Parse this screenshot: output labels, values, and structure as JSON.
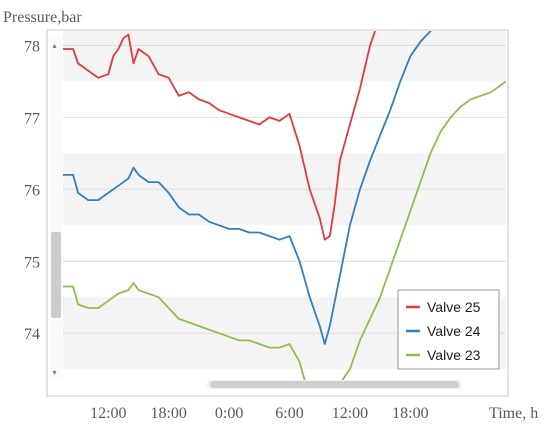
{
  "chart_data": {
    "type": "line",
    "title": "",
    "ylabel": "Pressure,bar",
    "xlabel": "Time, h",
    "x_ticks": [
      "12:00",
      "18:00",
      "0:00",
      "6:00",
      "12:00",
      "18:00"
    ],
    "x_tick_hours": [
      12,
      18,
      24,
      30,
      36,
      42
    ],
    "xlim": [
      7.5,
      51.5
    ],
    "y_ticks": [
      74,
      75,
      76,
      77,
      78
    ],
    "ylim": [
      73.35,
      78.2
    ],
    "grid": true,
    "legend_position": "bottom-right",
    "series": [
      {
        "name": "Valve 25",
        "color": "#e03a3e",
        "x": [
          7.5,
          8.5,
          9,
          10,
          11,
          12,
          12.5,
          13,
          13.5,
          14,
          14.5,
          15,
          15.5,
          16,
          17,
          18,
          19,
          20,
          21,
          22,
          23,
          24,
          25,
          26,
          27,
          28,
          29,
          30,
          31,
          32,
          33,
          33.5,
          34,
          34.5,
          35,
          36,
          37,
          37.5,
          38,
          38.5
        ],
        "y": [
          77.95,
          77.95,
          77.75,
          77.65,
          77.55,
          77.6,
          77.85,
          77.95,
          78.1,
          78.15,
          77.75,
          77.95,
          77.9,
          77.85,
          77.6,
          77.55,
          77.3,
          77.35,
          77.25,
          77.2,
          77.1,
          77.05,
          77.0,
          76.95,
          76.9,
          77.0,
          76.95,
          77.05,
          76.6,
          76.0,
          75.6,
          75.3,
          75.35,
          75.8,
          76.4,
          76.9,
          77.4,
          77.7,
          78.0,
          78.2
        ]
      },
      {
        "name": "Valve 24",
        "color": "#2f7fc1",
        "x": [
          7.5,
          8.5,
          9,
          10,
          11,
          12,
          13,
          14,
          14.5,
          15,
          16,
          17,
          18,
          19,
          20,
          21,
          22,
          23,
          24,
          25,
          26,
          27,
          28,
          29,
          30,
          31,
          32,
          33,
          33.5,
          34,
          35,
          36,
          37,
          38,
          39,
          40,
          41,
          42,
          43,
          44,
          44.5
        ],
        "y": [
          76.2,
          76.2,
          75.95,
          75.85,
          75.85,
          75.95,
          76.05,
          76.15,
          76.3,
          76.2,
          76.1,
          76.1,
          75.95,
          75.75,
          75.65,
          75.65,
          75.55,
          75.5,
          75.45,
          75.45,
          75.4,
          75.4,
          75.35,
          75.3,
          75.35,
          75.0,
          74.5,
          74.1,
          73.85,
          74.1,
          74.8,
          75.5,
          76.0,
          76.4,
          76.75,
          77.1,
          77.5,
          77.85,
          78.05,
          78.2,
          78.25
        ]
      },
      {
        "name": "Valve 23",
        "color": "#8dc04b",
        "x": [
          7.5,
          8.5,
          9,
          10,
          11,
          12,
          13,
          14,
          14.5,
          15,
          16,
          17,
          18,
          19,
          20,
          21,
          22,
          23,
          24,
          25,
          26,
          27,
          28,
          29,
          30,
          31,
          31.5,
          32,
          33,
          34,
          35,
          36,
          37,
          38,
          39,
          40,
          41,
          42,
          43,
          44,
          45,
          46,
          47,
          48,
          49,
          50,
          51,
          51.5
        ],
        "y": [
          74.65,
          74.65,
          74.4,
          74.35,
          74.35,
          74.45,
          74.55,
          74.6,
          74.7,
          74.6,
          74.55,
          74.5,
          74.35,
          74.2,
          74.15,
          74.1,
          74.05,
          74.0,
          73.95,
          73.9,
          73.9,
          73.85,
          73.8,
          73.8,
          73.85,
          73.6,
          73.35,
          73.3,
          73.25,
          73.25,
          73.3,
          73.5,
          73.9,
          74.2,
          74.5,
          74.9,
          75.3,
          75.7,
          76.1,
          76.5,
          76.8,
          77.0,
          77.15,
          77.25,
          77.3,
          77.35,
          77.45,
          77.5
        ]
      }
    ]
  }
}
